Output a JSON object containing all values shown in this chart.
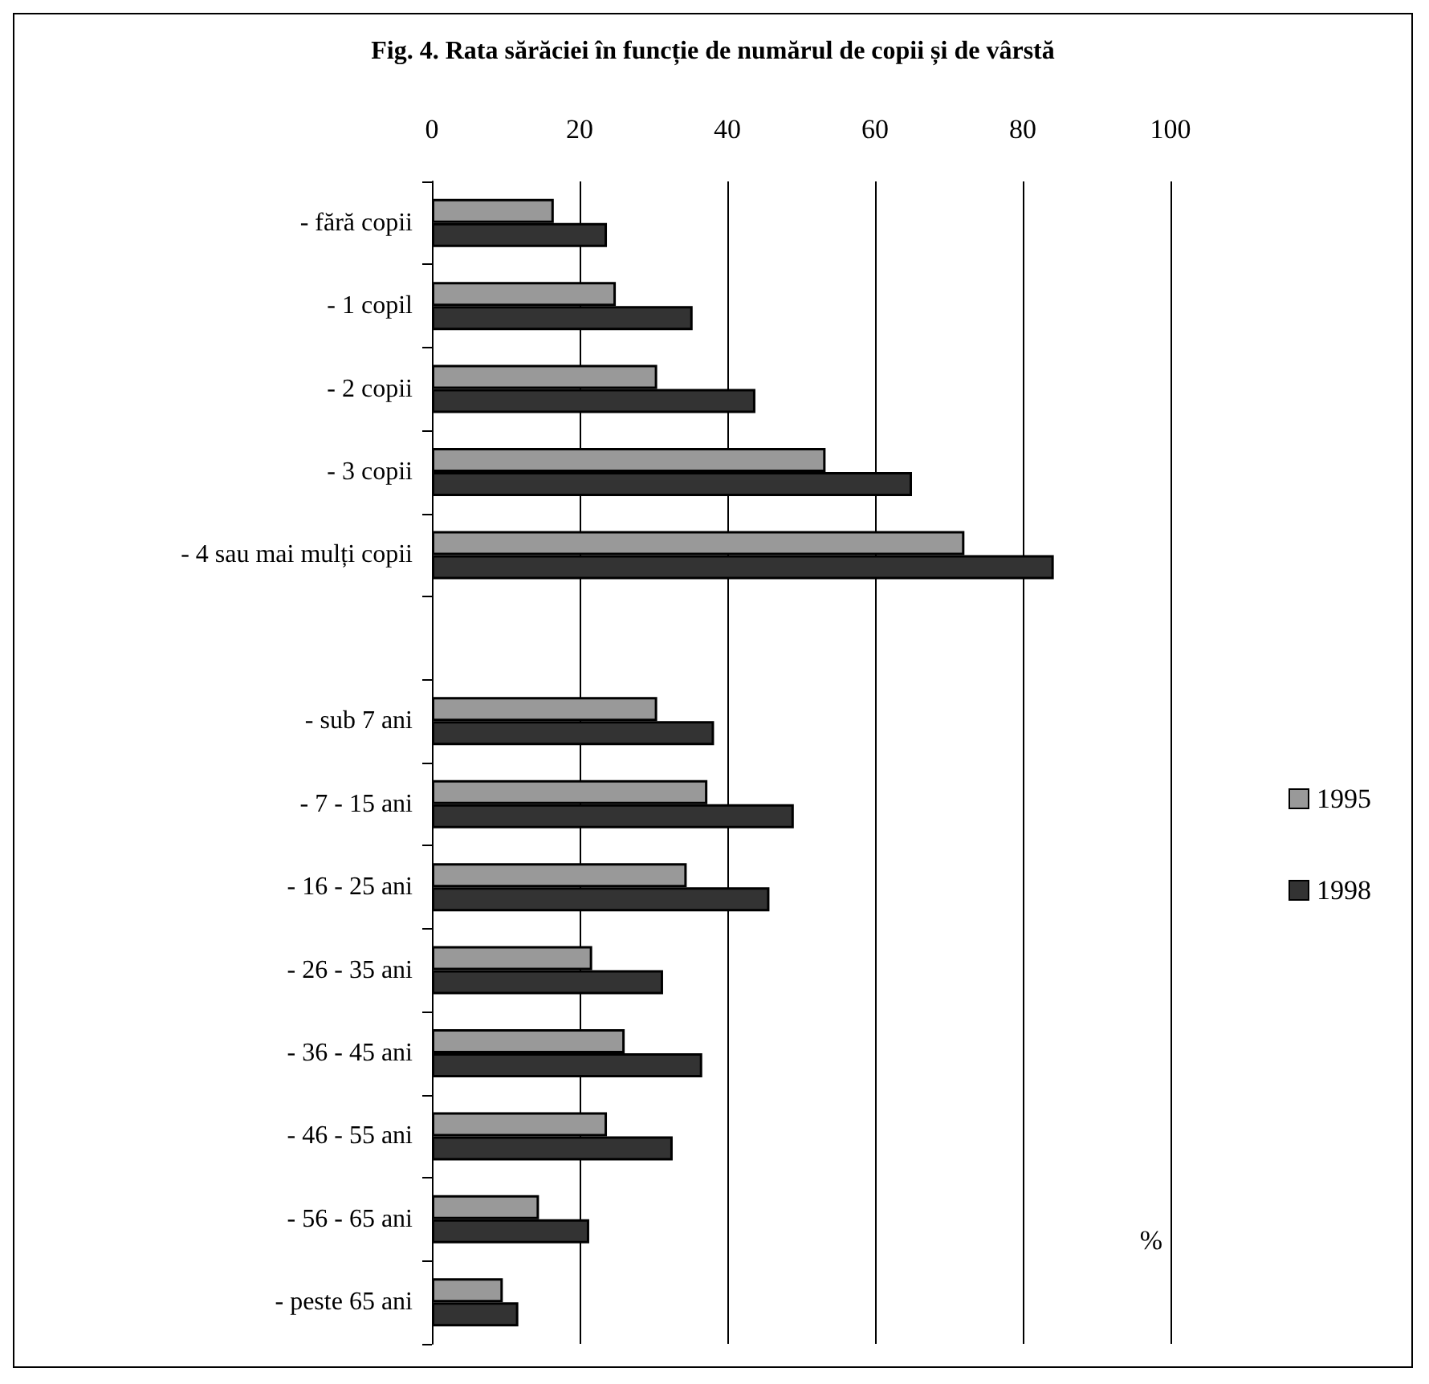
{
  "chart_data": {
    "type": "bar",
    "orientation": "horizontal",
    "title": "Fig. 4. Rata sărăciei în funcție de numărul de copii și de vârstă",
    "categories": [
      "- fără copii",
      "- 1 copil",
      "- 2 copii",
      "- 3 copii",
      "- 4 sau mai mulți copii",
      null,
      "- sub 7 ani",
      "- 7 - 15 ani",
      "- 16 - 25 ani",
      "- 26 - 35 ani",
      "- 36 - 45 ani",
      "- 46 - 55 ani",
      "- 56 - 65 ani",
      "- peste 65 ani"
    ],
    "series": [
      {
        "name": "1995",
        "color": "#999999",
        "values": [
          16.5,
          24.9,
          30.5,
          53.3,
          72.1,
          null,
          30.5,
          37.3,
          34.5,
          21.7,
          26.1,
          23.7,
          14.5,
          9.6
        ]
      },
      {
        "name": "1998",
        "color": "#333333",
        "values": [
          23.7,
          35.3,
          43.8,
          65.0,
          84.2,
          null,
          38.2,
          49.0,
          45.7,
          31.3,
          36.6,
          32.6,
          21.3,
          11.7
        ]
      }
    ],
    "xlim": [
      0,
      100
    ],
    "xticks": [
      0,
      20,
      40,
      60,
      80,
      100
    ],
    "grid": "x",
    "legend": "right",
    "annotations": [
      "%"
    ]
  }
}
